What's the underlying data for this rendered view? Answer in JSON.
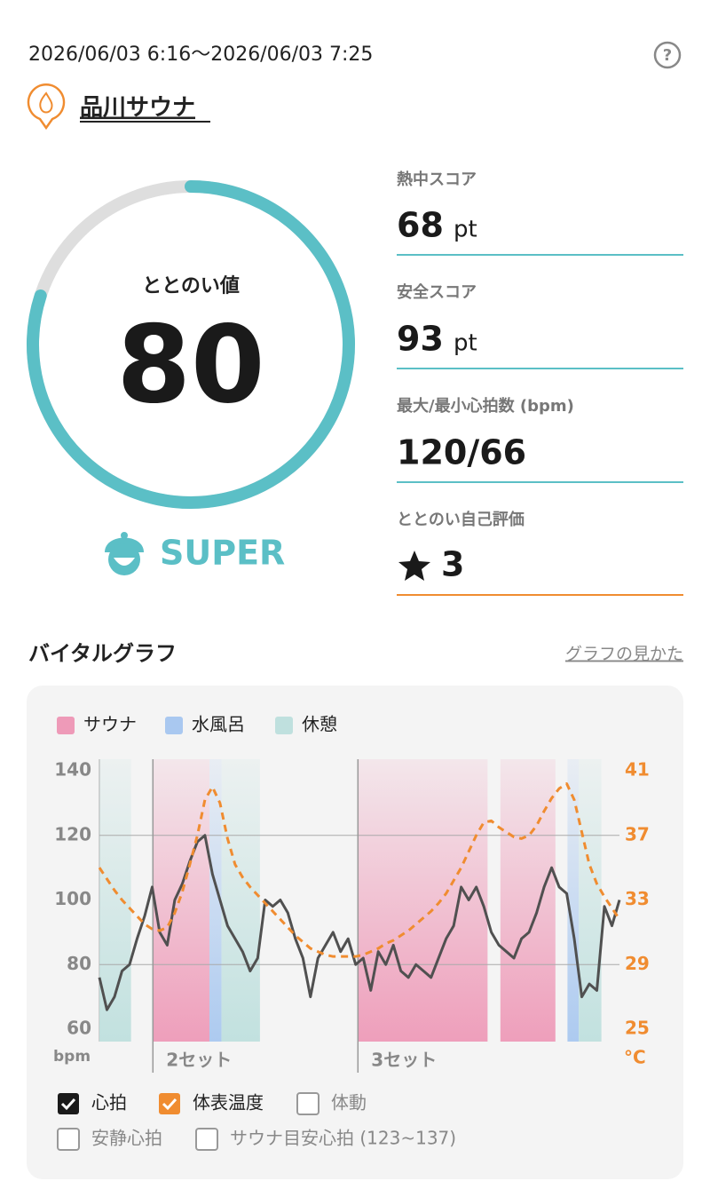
{
  "header": {
    "period": "2026/06/03 6:16〜2026/06/03 7:25",
    "facility": "品川サウナ"
  },
  "score": {
    "label": "ととのい値",
    "value": 80,
    "rank": "SUPER"
  },
  "stats": [
    {
      "label": "熱中スコア",
      "value": "68",
      "unit": "pt"
    },
    {
      "label": "安全スコア",
      "value": "93",
      "unit": "pt"
    },
    {
      "label": "最大/最小心拍数 (bpm)",
      "value": "120/66"
    },
    {
      "label": "ととのい自己評価",
      "value": "3"
    }
  ],
  "section": {
    "title": "バイタルグラフ",
    "link": "グラフの見かた"
  },
  "chart_data": {
    "type": "line",
    "legend": [
      {
        "name": "サウナ",
        "color": "#ee9ab8"
      },
      {
        "name": "水風呂",
        "color": "#a9c8f0"
      },
      {
        "name": "休憩",
        "color": "#bfe0de"
      }
    ],
    "zones": [
      {
        "kind": 2,
        "start": 0,
        "end": 4.2
      },
      {
        "kind": 0,
        "start": 7.1,
        "end": 14.6
      },
      {
        "kind": 1,
        "start": 14.6,
        "end": 16.2
      },
      {
        "kind": 2,
        "start": 16.2,
        "end": 21.3
      },
      {
        "kind": 0,
        "start": 34.3,
        "end": 51.5
      },
      {
        "kind": 0,
        "start": 53.2,
        "end": 60.5
      },
      {
        "kind": 1,
        "start": 62.1,
        "end": 63.6
      },
      {
        "kind": 2,
        "start": 63.6,
        "end": 66.6
      }
    ],
    "sets": [
      {
        "label": "2セット",
        "start": 7.1
      },
      {
        "label": "3セット",
        "start": 34.3
      }
    ],
    "series": [
      {
        "name": "心拍",
        "color": "#505050",
        "values": [
          76,
          66,
          70,
          78,
          80,
          88,
          95,
          104,
          90,
          86,
          100,
          105,
          112,
          118,
          120,
          108,
          100,
          92,
          88,
          84,
          78,
          82,
          100,
          98,
          100,
          96,
          88,
          82,
          70,
          82,
          86,
          90,
          84,
          88,
          80,
          82,
          72,
          84,
          80,
          86,
          78,
          76,
          80,
          78,
          76,
          82,
          88,
          92,
          104,
          100,
          104,
          98,
          90,
          86,
          84,
          82,
          88,
          90,
          96,
          104,
          110,
          104,
          102,
          88,
          70,
          74,
          72,
          98,
          92,
          100
        ]
      },
      {
        "name": "体表温度",
        "color": "#f08c30",
        "axis": "y2",
        "dashed": true,
        "values": [
          35.0,
          34.3,
          33.6,
          33.0,
          32.5,
          32.0,
          31.5,
          31.2,
          31.1,
          31.3,
          32.2,
          33.5,
          35.2,
          37.0,
          39.2,
          40.0,
          39.0,
          36.8,
          35.2,
          34.4,
          33.8,
          33.3,
          32.8,
          32.3,
          31.8,
          31.3,
          30.8,
          30.4,
          30.0,
          29.8,
          29.6,
          29.5,
          29.5,
          29.5,
          29.5,
          29.6,
          29.8,
          30.0,
          30.3,
          30.5,
          30.8,
          31.1,
          31.5,
          31.9,
          32.3,
          32.8,
          33.4,
          34.2,
          35.0,
          36.0,
          37.0,
          37.8,
          37.9,
          37.5,
          37.2,
          36.9,
          36.8,
          37.0,
          37.6,
          38.5,
          39.3,
          39.9,
          40.2,
          39.2,
          37.2,
          35.2,
          34.0,
          33.2,
          32.5,
          31.8
        ]
      }
    ],
    "xlim": [
      0,
      69
    ],
    "ylim": [
      60,
      140
    ],
    "yticks": [
      60,
      80,
      100,
      120,
      140
    ],
    "ygrid": [
      80,
      120
    ],
    "y2lim": [
      25,
      41
    ],
    "y2ticks": [
      25,
      29,
      33,
      37,
      41
    ],
    "y_label": "bpm",
    "y2_label": "°C"
  },
  "toggles": [
    {
      "label": "体動",
      "checked": false
    },
    {
      "label": "安静心拍",
      "checked": false
    },
    {
      "label": "サウナ目安心拍 (123~137)",
      "checked": false
    }
  ]
}
